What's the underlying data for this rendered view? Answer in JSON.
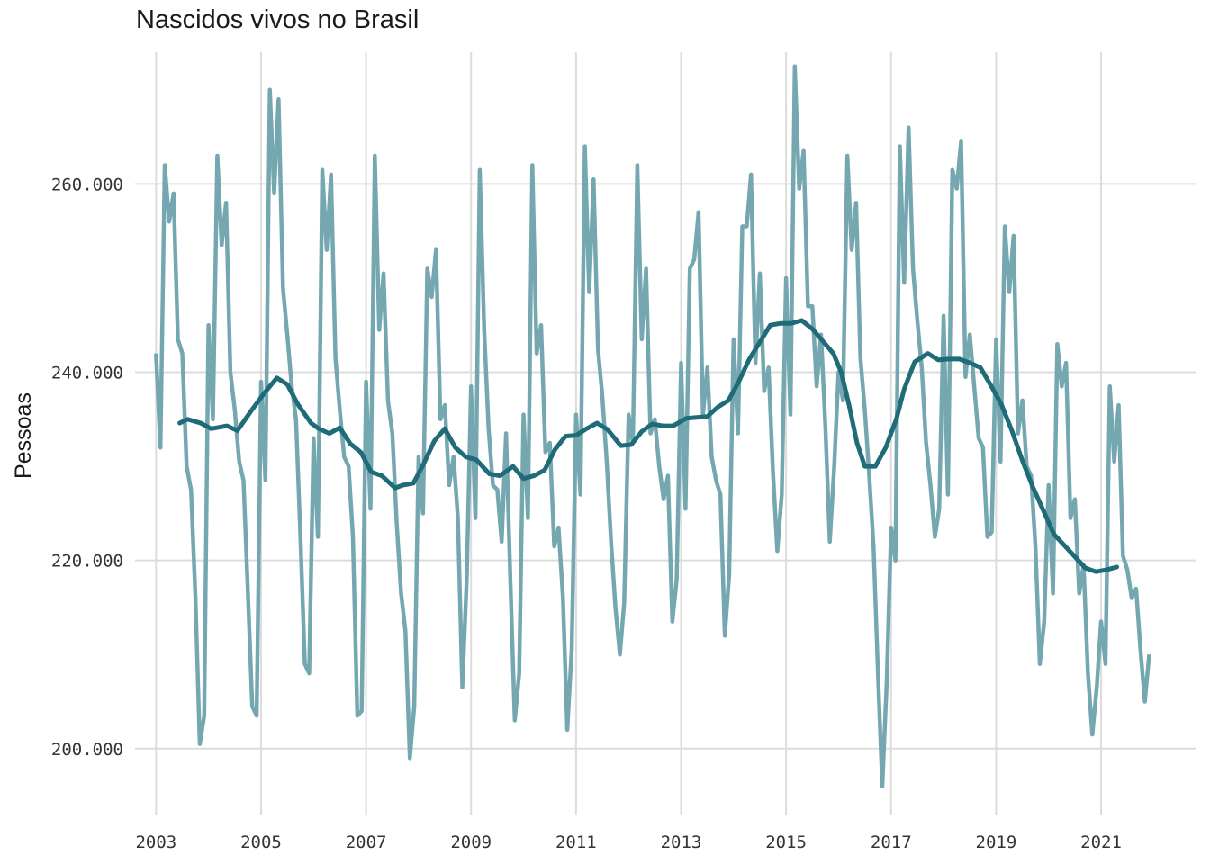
{
  "chart_data": {
    "type": "line",
    "title": "Nascidos vivos no Brasil",
    "xlabel": "",
    "ylabel": "Pessoas",
    "x_ticks": [
      "2003",
      "2005",
      "2007",
      "2009",
      "2011",
      "2013",
      "2015",
      "2017",
      "2019",
      "2021"
    ],
    "y_ticks": [
      "200.000",
      "220.000",
      "240.000",
      "260.000"
    ],
    "xlim": [
      2002.6,
      2022.8
    ],
    "ylim": [
      193000,
      274000
    ],
    "grid": true,
    "colors": {
      "monthly": "#74a7b0",
      "trend": "#1f6b78"
    },
    "series": [
      {
        "x_start": 2003.0,
        "x_step": 0.083333,
        "values": [
          242000,
          232000,
          262000,
          256000,
          259000,
          243500,
          242000,
          230000,
          227500,
          216000,
          200500,
          203500,
          245000,
          235000,
          263000,
          253500,
          258000,
          240000,
          236000,
          230500,
          228500,
          216500,
          204500,
          203500,
          239000,
          228500,
          270000,
          259000,
          269000,
          249000,
          244000,
          238500,
          235000,
          222500,
          209000,
          208000,
          233000,
          222500,
          261500,
          253000,
          261000,
          241500,
          236000,
          231000,
          230000,
          222500,
          203500,
          204000,
          239000,
          225500,
          263000,
          244500,
          250500,
          237000,
          233500,
          224000,
          216500,
          212500,
          199000,
          204500,
          231000,
          225000,
          251000,
          248000,
          253000,
          235000,
          236500,
          228000,
          231000,
          224500,
          206500,
          218000,
          238500,
          224500,
          261500,
          244500,
          234000,
          228000,
          227500,
          222000,
          233500,
          217500,
          203000,
          208000,
          235500,
          224500,
          262000,
          242000,
          245000,
          231500,
          232500,
          221500,
          223500,
          216000,
          202000,
          210500,
          235500,
          227000,
          264000,
          248500,
          260500,
          242500,
          237500,
          230500,
          222000,
          215000,
          210000,
          215500,
          235500,
          232500,
          262000,
          243500,
          251000,
          233500,
          235000,
          230000,
          226500,
          229000,
          213500,
          218000,
          241000,
          225500,
          251000,
          252000,
          257000,
          235500,
          240500,
          231000,
          228500,
          227000,
          212000,
          218500,
          243500,
          233500,
          255500,
          255500,
          261000,
          241000,
          250500,
          238000,
          240500,
          229500,
          221000,
          227000,
          250000,
          235500,
          272500,
          259500,
          263500,
          247000,
          247000,
          238500,
          244000,
          234000,
          222000,
          230000,
          240000,
          237000,
          263000,
          253000,
          258000,
          241500,
          236000,
          229000,
          221500,
          208000,
          196000,
          207000,
          223500,
          220000,
          264000,
          249500,
          266000,
          251000,
          245500,
          240500,
          232500,
          228000,
          222500,
          225500,
          246000,
          227000,
          261500,
          259500,
          264500,
          239500,
          244000,
          238500,
          233000,
          232000,
          222500,
          223000,
          243500,
          230500,
          255500,
          248500,
          254500,
          233500,
          237000,
          230000,
          229000,
          221500,
          209000,
          213500,
          228000,
          216500,
          243000,
          238500,
          241000,
          224500,
          226500,
          216500,
          219500,
          208000,
          201500,
          206500,
          213500,
          209000,
          238500,
          230500,
          236500,
          220500,
          219000,
          216000,
          217000,
          210500,
          205000,
          210000
        ]
      },
      {
        "x": [
          2003.45,
          2003.6,
          2003.85,
          2004.05,
          2004.35,
          2004.55,
          2004.8,
          2005.05,
          2005.3,
          2005.5,
          2005.7,
          2005.95,
          2006.1,
          2006.3,
          2006.5,
          2006.7,
          2006.9,
          2007.1,
          2007.3,
          2007.55,
          2007.7,
          2007.9,
          2008.1,
          2008.3,
          2008.5,
          2008.7,
          2008.9,
          2009.1,
          2009.35,
          2009.55,
          2009.8,
          2010.0,
          2010.2,
          2010.4,
          2010.6,
          2010.8,
          2011.0,
          2011.2,
          2011.4,
          2011.6,
          2011.85,
          2012.05,
          2012.25,
          2012.45,
          2012.65,
          2012.85,
          2013.1,
          2013.3,
          2013.5,
          2013.7,
          2013.9,
          2014.1,
          2014.3,
          2014.5,
          2014.7,
          2014.9,
          2015.1,
          2015.3,
          2015.5,
          2015.7,
          2015.9,
          2016.05,
          2016.2,
          2016.35,
          2016.5,
          2016.7,
          2016.9,
          2017.1,
          2017.25,
          2017.45,
          2017.7,
          2017.9,
          2018.1,
          2018.3,
          2018.5,
          2018.7,
          2018.9,
          2019.1,
          2019.3,
          2019.5,
          2019.7,
          2019.9,
          2020.1,
          2020.3,
          2020.5,
          2020.7,
          2020.9,
          2021.1,
          2021.3
        ],
        "values": [
          234600,
          235000,
          234600,
          234000,
          234300,
          233800,
          235800,
          237700,
          239400,
          238700,
          236600,
          234600,
          234000,
          233500,
          234100,
          232400,
          231500,
          229400,
          229000,
          227700,
          228000,
          228200,
          230300,
          232700,
          234000,
          232000,
          231000,
          230700,
          229200,
          229000,
          230000,
          228700,
          229000,
          229600,
          231800,
          233200,
          233300,
          234000,
          234600,
          233900,
          232200,
          232300,
          233700,
          234500,
          234300,
          234300,
          235100,
          235200,
          235300,
          236300,
          237000,
          239000,
          241400,
          243200,
          245000,
          245200,
          245200,
          245500,
          244600,
          243300,
          242000,
          240000,
          236500,
          232500,
          230000,
          230000,
          232000,
          235000,
          238200,
          241100,
          242000,
          241300,
          241400,
          241400,
          241000,
          240500,
          238600,
          236600,
          233800,
          230600,
          227800,
          225300,
          222800,
          221600,
          220400,
          219200,
          218800,
          219000,
          219300
        ]
      }
    ]
  }
}
